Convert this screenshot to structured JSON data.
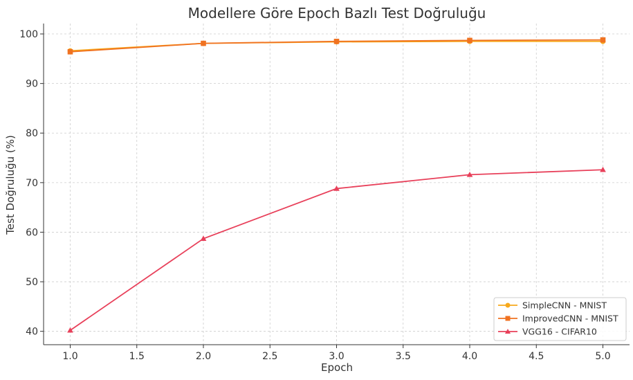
{
  "chart_data": {
    "type": "line",
    "title": "Modellere Göre Epoch Bazlı Test Doğruluğu",
    "xlabel": "Epoch",
    "ylabel": "Test Doğruluğu (%)",
    "xlim": [
      0.8,
      5.2
    ],
    "ylim": [
      37.3,
      102.1
    ],
    "x_ticks": [
      "1.0",
      "1.5",
      "2.0",
      "2.5",
      "3.0",
      "3.5",
      "4.0",
      "4.5",
      "5.0"
    ],
    "y_ticks": [
      "40",
      "50",
      "60",
      "70",
      "80",
      "90",
      "100"
    ],
    "grid": true,
    "legend_position": "bottom-right",
    "x": [
      1,
      2,
      3,
      4,
      5
    ],
    "series": [
      {
        "name": "SimpleCNN - MNIST",
        "color": "#f7a91c",
        "marker": "circle",
        "values": [
          96.6,
          98.1,
          98.4,
          98.5,
          98.5
        ]
      },
      {
        "name": "ImprovedCNN - MNIST",
        "color": "#f07221",
        "marker": "square",
        "values": [
          96.4,
          98.1,
          98.5,
          98.7,
          98.8
        ]
      },
      {
        "name": "VGG16 - CIFAR10",
        "color": "#e8405a",
        "marker": "triangle",
        "values": [
          40.2,
          58.7,
          68.8,
          71.6,
          72.6
        ]
      }
    ]
  }
}
